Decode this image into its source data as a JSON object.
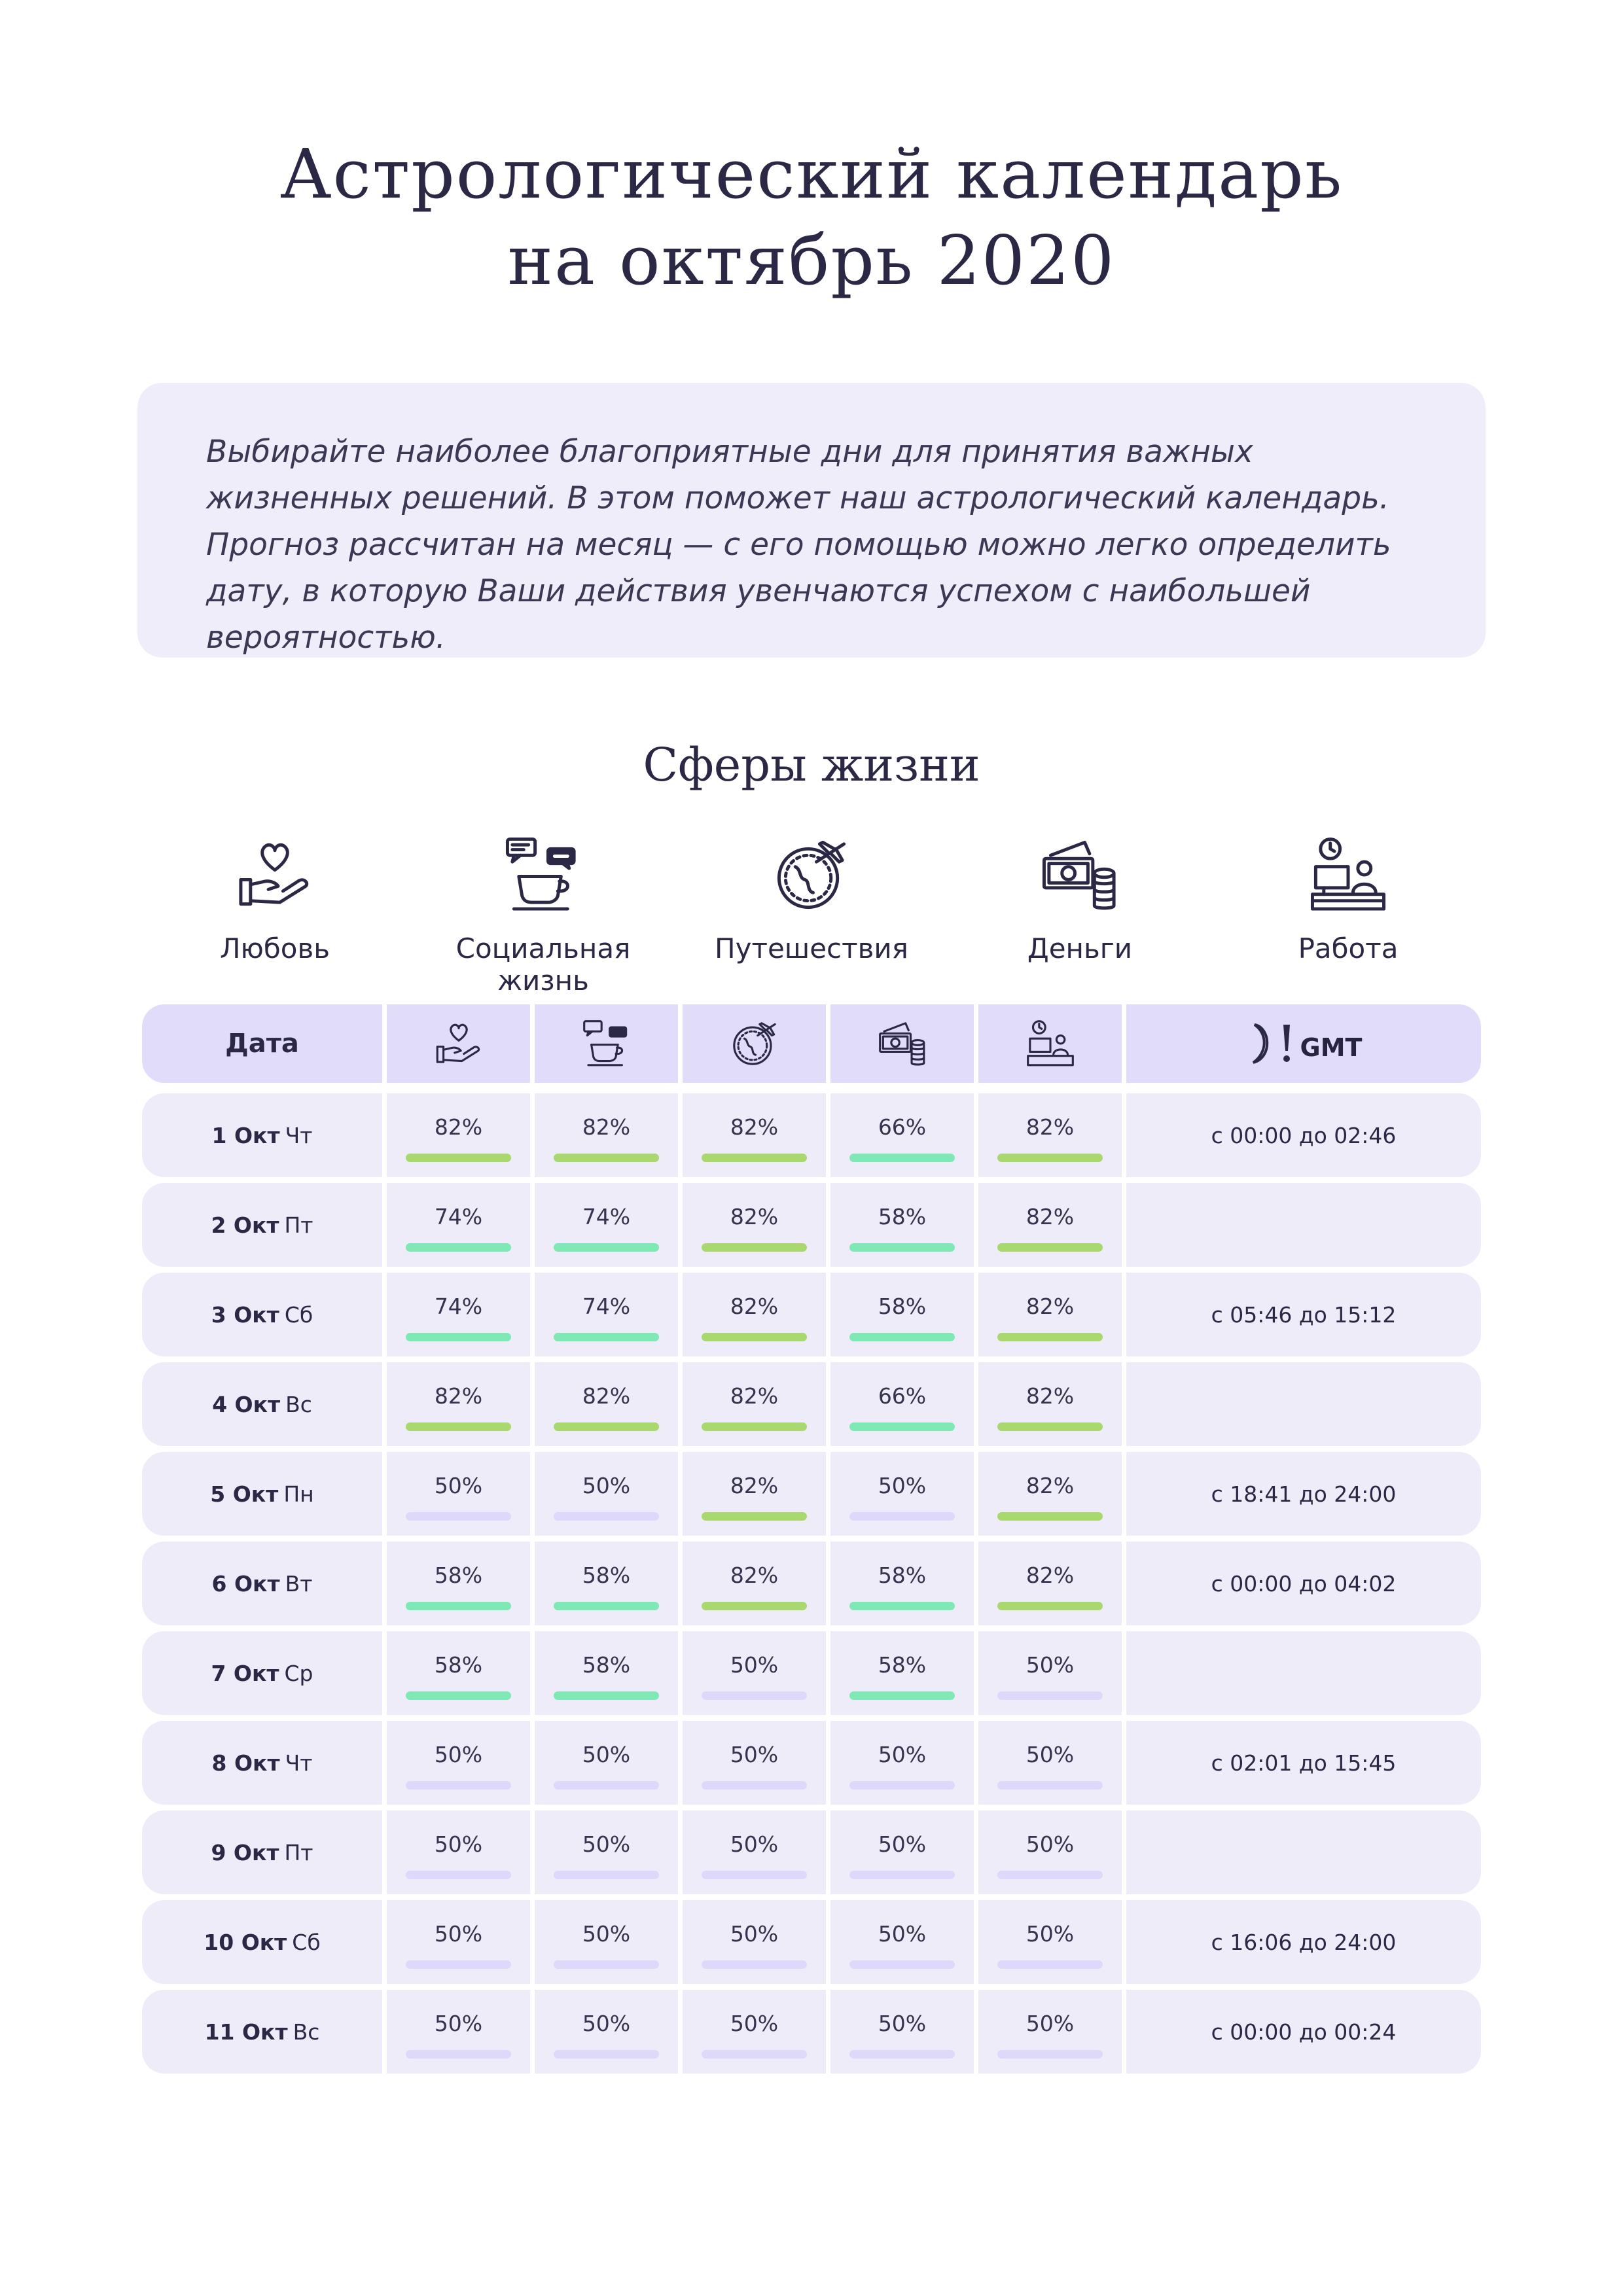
{
  "title_line1": "Астрологический календарь",
  "title_line2": "на октябрь 2020",
  "intro_text": "Выбирайте наиболее благоприятные дни для принятия важных жизненных решений. В этом поможет наш астрологический календарь. Прогноз рассчитан на месяц — с его помощью можно легко определить дату, в которую Ваши действия увенчаются успехом с наибольшей вероятностью.",
  "spheres_title": "Сферы жизни",
  "spheres": [
    {
      "label": "Любовь",
      "icon": "heart-hand-icon"
    },
    {
      "label": "Социальная жизнь",
      "icon": "coffee-chat-icon"
    },
    {
      "label": "Путешествия",
      "icon": "globe-plane-icon"
    },
    {
      "label": "Деньги",
      "icon": "money-icon"
    },
    {
      "label": "Работа",
      "icon": "work-desk-icon"
    }
  ],
  "table": {
    "date_header": "Дата",
    "gmt_label": "GMT",
    "rows": [
      {
        "day": "1 Окт",
        "weekday": "Чт",
        "values": [
          "82%",
          "82%",
          "82%",
          "66%",
          "82%"
        ],
        "moon": "с 00:00 до 02:46"
      },
      {
        "day": "2 Окт",
        "weekday": "Пт",
        "values": [
          "74%",
          "74%",
          "82%",
          "58%",
          "82%"
        ],
        "moon": ""
      },
      {
        "day": "3 Окт",
        "weekday": "Сб",
        "values": [
          "74%",
          "74%",
          "82%",
          "58%",
          "82%"
        ],
        "moon": "с 05:46 до 15:12"
      },
      {
        "day": "4 Окт",
        "weekday": "Вс",
        "values": [
          "82%",
          "82%",
          "82%",
          "66%",
          "82%"
        ],
        "moon": ""
      },
      {
        "day": "5 Окт",
        "weekday": "Пн",
        "values": [
          "50%",
          "50%",
          "82%",
          "50%",
          "82%"
        ],
        "moon": "с 18:41 до 24:00"
      },
      {
        "day": "6 Окт",
        "weekday": "Вт",
        "values": [
          "58%",
          "58%",
          "82%",
          "58%",
          "82%"
        ],
        "moon": "с 00:00 до 04:02"
      },
      {
        "day": "7 Окт",
        "weekday": "Ср",
        "values": [
          "58%",
          "58%",
          "50%",
          "58%",
          "50%"
        ],
        "moon": ""
      },
      {
        "day": "8 Окт",
        "weekday": "Чт",
        "values": [
          "50%",
          "50%",
          "50%",
          "50%",
          "50%"
        ],
        "moon": "с 02:01 до 15:45"
      },
      {
        "day": "9 Окт",
        "weekday": "Пт",
        "values": [
          "50%",
          "50%",
          "50%",
          "50%",
          "50%"
        ],
        "moon": ""
      },
      {
        "day": "10 Окт",
        "weekday": "Сб",
        "values": [
          "50%",
          "50%",
          "50%",
          "50%",
          "50%"
        ],
        "moon": "с 16:06 до 24:00"
      },
      {
        "day": "11 Окт",
        "weekday": "Вс",
        "values": [
          "50%",
          "50%",
          "50%",
          "50%",
          "50%"
        ],
        "moon": "с 00:00 до 00:24"
      }
    ]
  },
  "colors": {
    "bar_82": "#a8d86e",
    "bar_66_74_58": "#7ee9b4",
    "bar_50": "#ded9fa"
  }
}
